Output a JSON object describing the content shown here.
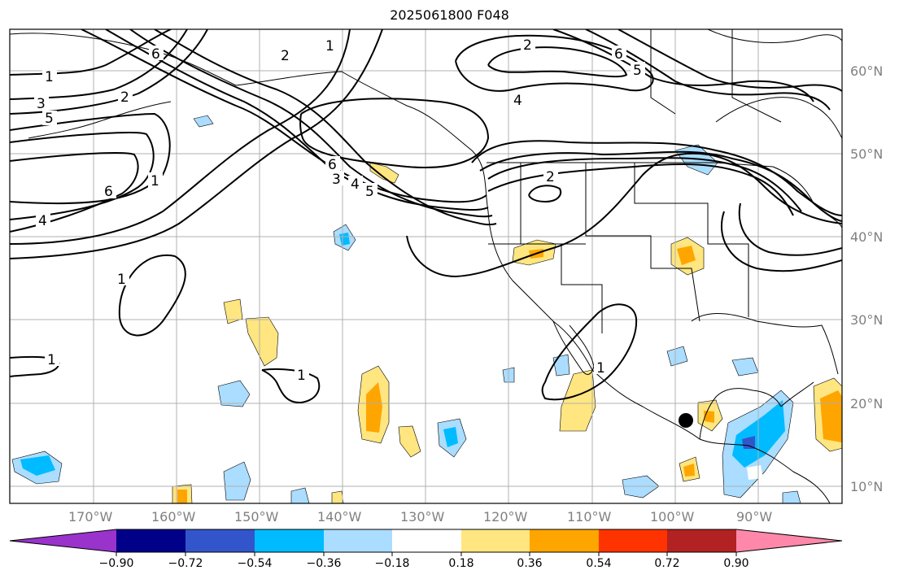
{
  "title": "2025061800 F048",
  "latitude_labels": [
    "60°N",
    "50°N",
    "40°N",
    "30°N",
    "20°N",
    "10°N"
  ],
  "longitude_labels": [
    "170°W",
    "160°W",
    "150°W",
    "140°W",
    "130°W",
    "120°W",
    "110°W",
    "100°W",
    "90°W"
  ],
  "contour_labels": [
    "1",
    "2",
    "3",
    "4",
    "5",
    "6"
  ],
  "colorbar": {
    "tick_labels": [
      "−0.90",
      "−0.72",
      "−0.54",
      "−0.36",
      "−0.18",
      "0.18",
      "0.36",
      "0.54",
      "0.72",
      "0.90"
    ],
    "colors": [
      "#9933cc",
      "#000088",
      "#3355cc",
      "#00bbff",
      "#aaddff",
      "#ffffff",
      "#ffe680",
      "#ffa500",
      "#ff3300",
      "#b22222",
      "#ff88aa"
    ]
  },
  "colors": {
    "contour": "#000000",
    "coast": "#000000",
    "grid": "#b0b0b0",
    "frame": "#000000"
  }
}
